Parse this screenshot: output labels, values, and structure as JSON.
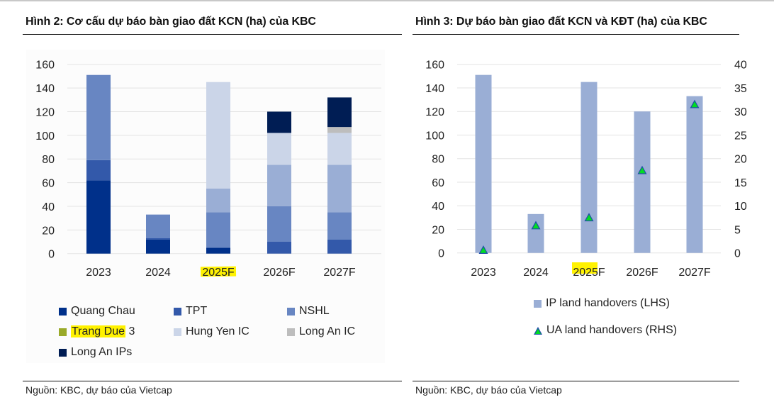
{
  "figures": {
    "left_title": "Hình 2: Cơ cấu dự báo bàn giao đất KCN (ha) của KBC",
    "right_title": "Hình 3: Dự báo bàn giao đất KCN và KĐT (ha) của KBC",
    "left_source": "Nguồn: KBC, dự báo của Vietcap",
    "right_source": "Nguồn: KBC, dự báo của Vietcap"
  },
  "chart_data": [
    {
      "type": "bar",
      "stacked": true,
      "title": "Hình 2: Cơ cấu dự báo bàn giao đất KCN (ha) của KBC",
      "xlabel": "",
      "ylabel": "",
      "ylim": [
        0,
        160
      ],
      "yticks": [
        0,
        20,
        40,
        60,
        80,
        100,
        120,
        140,
        160
      ],
      "grid": true,
      "legend_position": "bottom",
      "categories": [
        "2023",
        "2024",
        "2025F",
        "2026F",
        "2027F"
      ],
      "highlighted_category": "2025F",
      "series": [
        {
          "name": "Quang Chau",
          "color": "#00308a",
          "values": [
            62,
            12,
            5,
            0,
            0
          ]
        },
        {
          "name": "TPT",
          "color": "#3359aa",
          "values": [
            17,
            1,
            0,
            10,
            12
          ]
        },
        {
          "name": "NSHL",
          "color": "#6886c2",
          "values": [
            72,
            20,
            30,
            30,
            23
          ]
        },
        {
          "name": "Trang Due 3",
          "color": "#9aaed5",
          "values": [
            0,
            0,
            20,
            35,
            40
          ]
        },
        {
          "name": "Hung Yen IC",
          "color": "#cbd5e8",
          "values": [
            0,
            0,
            90,
            27,
            27
          ]
        },
        {
          "name": "Long An IC",
          "color": "#bdbdbd",
          "values": [
            0,
            0,
            0,
            0,
            5
          ]
        },
        {
          "name": "Long An IPs",
          "color": "#001d54",
          "values": [
            0,
            0,
            0,
            18,
            25
          ]
        }
      ],
      "legend": [
        {
          "label": "Quang Chau",
          "highlight": ""
        },
        {
          "label": "TPT",
          "highlight": ""
        },
        {
          "label": "NSHL",
          "highlight": ""
        },
        {
          "label": "Trang Due 3",
          "highlight": "Trang Due"
        },
        {
          "label": "Hung Yen IC",
          "highlight": ""
        },
        {
          "label": "Long An IC",
          "highlight": ""
        },
        {
          "label": "Long An IPs",
          "highlight": ""
        }
      ]
    },
    {
      "type": "bar",
      "title": "Hình 3: Dự báo bàn giao đất KCN và KĐT (ha) của KBC",
      "xlabel": "",
      "ylabel": "",
      "ylim": [
        0,
        160
      ],
      "yticks": [
        0,
        20,
        40,
        60,
        80,
        100,
        120,
        140,
        160
      ],
      "y2lim": [
        0,
        40
      ],
      "y2ticks": [
        0,
        5,
        10,
        15,
        20,
        25,
        30,
        35,
        40
      ],
      "grid": true,
      "legend_position": "bottom",
      "categories": [
        "2023",
        "2024",
        "2025F",
        "2026F",
        "2027F"
      ],
      "highlighted_category": "2025F",
      "series": [
        {
          "name": "IP land handovers (LHS)",
          "type": "bar",
          "axis": "left",
          "color": "#9aaed5",
          "values": [
            151,
            33,
            145,
            120,
            133
          ]
        },
        {
          "name": "UA land handovers (RHS)",
          "type": "scatter",
          "marker": "triangle",
          "axis": "right",
          "color": "#00dd22",
          "edge_color": "#1f4ea8",
          "values": [
            0.5,
            5.7,
            7.4,
            17.4,
            31.4
          ]
        }
      ]
    }
  ]
}
